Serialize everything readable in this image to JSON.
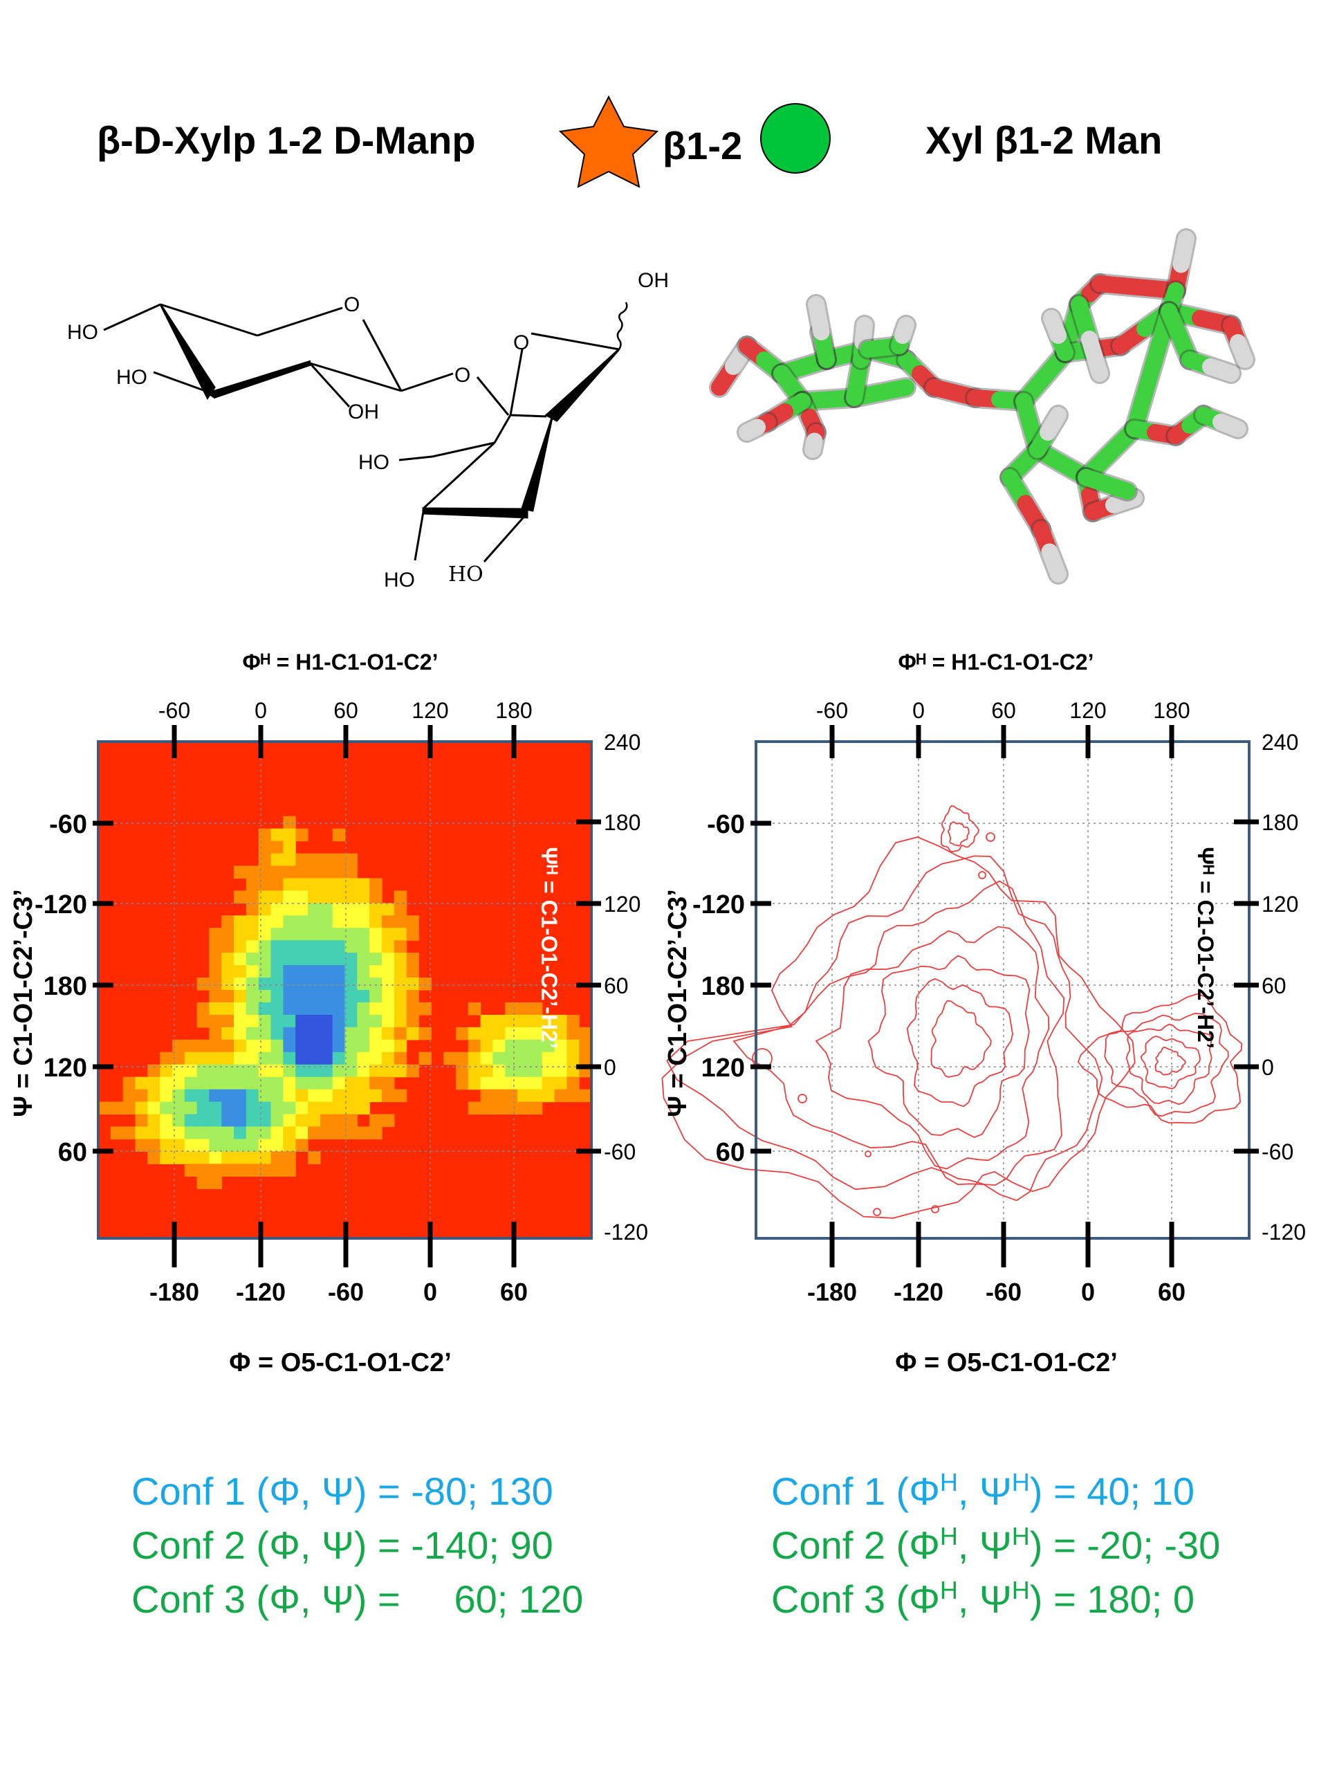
{
  "header": {
    "left_name": "β-D-Xylp 1-2 D-Manp",
    "linkage": "β1-2",
    "right_name": "Xyl β1-2 Man",
    "star_color": "#ff6a00",
    "circle_color": "#00c43a"
  },
  "structure": {
    "labels": {
      "ho_top": "HO",
      "ho_mid": "HO",
      "oh_bottom": "OH",
      "o_ring1": "O",
      "o_link": "O",
      "o_ring2": "O",
      "oh_anomeric": "OH",
      "ho_c6": "HO",
      "ho_left": "HO",
      "ho_right": "HO"
    }
  },
  "model3d": {
    "carbon_color": "#3fd13f",
    "oxygen_color": "#e23b3b",
    "hydrogen_color": "#d8d8d8"
  },
  "plots": [
    {
      "kind": "heatmap",
      "top_axis_title": "Φᴴ = H1-C1-O1-C2’",
      "top_ticks": [
        "-60",
        "0",
        "60",
        "120",
        "180"
      ],
      "bottom_ticks": [
        "-180",
        "-120",
        "-60",
        "0",
        "60"
      ],
      "bottom_axis_title": "Φ = O5-C1-O1-C2’",
      "left_axis_title": "Ψ = C1-O1-C2’-C3’",
      "left_ticks": [
        "-60",
        "-120",
        "180",
        "120",
        "60"
      ],
      "right_ticks": [
        "240",
        "180",
        "120",
        "60",
        "0",
        "-60",
        "-120"
      ],
      "right_axis_title": "Ψᴴ = C1-O1-C2’-H2’",
      "colors": {
        "background": "#ff2a00",
        "c1": "#ff8c00",
        "c2": "#ffd400",
        "c3": "#ffff33",
        "c4": "#a6ee5a",
        "c5": "#45d0b4",
        "c6": "#3a8fe0",
        "c7": "#3355dd"
      }
    },
    {
      "kind": "contour",
      "top_axis_title": "Φᴴ = H1-C1-O1-C2’",
      "top_ticks": [
        "-60",
        "0",
        "60",
        "120",
        "180"
      ],
      "bottom_ticks": [
        "-180",
        "-120",
        "-60",
        "0",
        "60"
      ],
      "bottom_axis_title": "Φ = O5-C1-O1-C2’",
      "left_axis_title": "Ψ = C1-O1-C2’-C3’",
      "left_ticks": [
        "-60",
        "-120",
        "180",
        "120",
        "60"
      ],
      "right_ticks": [
        "240",
        "180",
        "120",
        "60",
        "0",
        "-60",
        "-120"
      ],
      "right_axis_title": "Ψᴴ = C1-O1-C2’-H2’",
      "colors": {
        "contour": "#e84040"
      }
    }
  ],
  "conformations": {
    "left": [
      {
        "text": "Conf 1 (Φ, Ψ) = -80; 130",
        "color": "#19a7e6"
      },
      {
        "text": "Conf 2 (Φ, Ψ) = -140; 90",
        "color": "#13a84a"
      },
      {
        "text": "Conf 3 (Φ, Ψ) =     60; 120",
        "color": "#13a84a"
      }
    ],
    "right": [
      {
        "prefix": "Conf 1 (Φ",
        "sup1": "H",
        "mid": ", Ψ",
        "sup2": "H",
        "suffix": ") = 40; 10",
        "color": "#19a7e6"
      },
      {
        "prefix": "Conf 2 (Φ",
        "sup1": "H",
        "mid": ", Ψ",
        "sup2": "H",
        "suffix": ") = -20; -30",
        "color": "#13a84a"
      },
      {
        "prefix": "Conf 3 (Φ",
        "sup1": "H",
        "mid": ", Ψ",
        "sup2": "H",
        "suffix": ") = 180; 0",
        "color": "#13a84a"
      }
    ]
  }
}
